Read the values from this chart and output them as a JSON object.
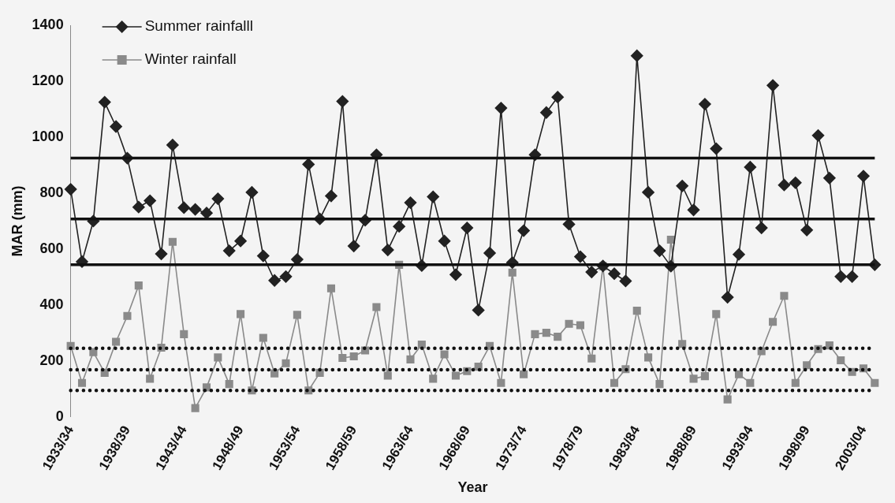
{
  "chart_data": {
    "type": "line",
    "xlabel": "Year",
    "ylabel": "MAR (mm)",
    "categories": [
      "1933/34",
      null,
      null,
      null,
      null,
      "1938/39",
      null,
      null,
      null,
      null,
      "1943/44",
      null,
      null,
      null,
      null,
      "1948/49",
      null,
      null,
      null,
      null,
      "1953/54",
      null,
      null,
      null,
      null,
      "1958/59",
      null,
      null,
      null,
      null,
      "1963/64",
      null,
      null,
      null,
      null,
      "1968/69",
      null,
      null,
      null,
      null,
      "1973/74",
      null,
      null,
      null,
      null,
      "1978/79",
      null,
      null,
      null,
      null,
      "1983/84",
      null,
      null,
      null,
      null,
      "1988/89",
      null,
      null,
      null,
      null,
      "1993/94",
      null,
      null,
      null,
      null,
      "1998/99",
      null,
      null,
      null,
      null,
      "2003/04",
      null
    ],
    "series": [
      {
        "name": "Summer rainfalll",
        "color": "#222222",
        "marker": "diamond",
        "values": [
          814,
          555,
          700,
          1125,
          1038,
          925,
          750,
          773,
          583,
          972,
          748,
          742,
          729,
          780,
          594,
          629,
          803,
          576,
          488,
          502,
          563,
          903,
          708,
          790,
          1128,
          611,
          703,
          937,
          597,
          681,
          766,
          541,
          787,
          629,
          509,
          676,
          382,
          586,
          1104,
          552,
          666,
          937,
          1088,
          1143,
          689,
          573,
          518,
          540,
          512,
          486,
          1291,
          803,
          594,
          539,
          826,
          740,
          1118,
          959,
          428,
          581,
          893,
          676,
          1185,
          829,
          837,
          668,
          1006,
          854,
          502,
          502,
          861,
          544
        ]
      },
      {
        "name": "Winter rainfall",
        "color": "#8a8a8a",
        "marker": "square",
        "values": [
          254,
          122,
          232,
          158,
          269,
          361,
          470,
          137,
          248,
          626,
          296,
          32,
          106,
          213,
          118,
          368,
          95,
          283,
          156,
          192,
          365,
          95,
          158,
          460,
          211,
          217,
          238,
          393,
          148,
          544,
          206,
          259,
          137,
          224,
          148,
          164,
          180,
          254,
          122,
          516,
          153,
          296,
          301,
          287,
          333,
          328,
          209,
          539,
          122,
          171,
          380,
          213,
          118,
          634,
          261,
          137,
          146,
          368,
          63,
          153,
          122,
          235,
          340,
          433,
          122,
          185,
          243,
          256,
          203,
          161,
          174,
          122
        ]
      }
    ],
    "ylim": [
      0,
      1400
    ],
    "yticks": [
      0,
      200,
      400,
      600,
      800,
      1000,
      1200,
      1400
    ],
    "grid": false,
    "legend": "top left",
    "ref_lines": [
      {
        "axis": "y",
        "value": 925,
        "color": "#111111",
        "line_style": "solid"
      },
      {
        "axis": "y",
        "value": 708,
        "color": "#111111",
        "line_style": "solid"
      },
      {
        "axis": "y",
        "value": 544,
        "color": "#111111",
        "line_style": "solid"
      },
      {
        "axis": "y",
        "value": 246,
        "color": "#111111",
        "line_style": "dotted"
      },
      {
        "axis": "y",
        "value": 169,
        "color": "#111111",
        "line_style": "dotted"
      },
      {
        "axis": "y",
        "value": 95,
        "color": "#111111",
        "line_style": "dotted"
      }
    ]
  }
}
